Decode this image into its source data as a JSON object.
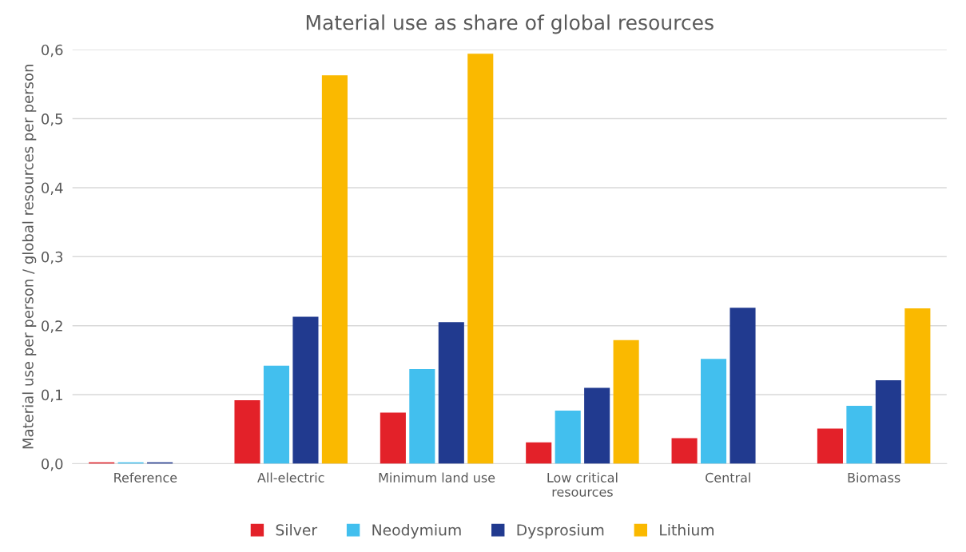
{
  "chart_data": {
    "type": "bar",
    "title": "Material use as share of global resources",
    "ylabel": "Material use per person / global resources per person",
    "categories": [
      "Reference",
      "All-electric",
      "Minimum land use",
      "Low critical\nresources",
      "Central",
      "Biomass"
    ],
    "series": [
      {
        "name": "Silver",
        "color": "#e32129",
        "values": [
          0.002,
          0.092,
          0.074,
          0.031,
          0.037,
          0.051
        ]
      },
      {
        "name": "Neodymium",
        "color": "#42bfee",
        "values": [
          0.002,
          0.142,
          0.137,
          0.077,
          0.152,
          0.084
        ]
      },
      {
        "name": "Dysprosium",
        "color": "#213a8f",
        "values": [
          0.002,
          0.213,
          0.205,
          0.11,
          0.226,
          0.121
        ]
      },
      {
        "name": "Lithium",
        "color": "#fab900",
        "values": [
          null,
          0.563,
          0.594,
          0.179,
          null,
          0.225
        ]
      }
    ],
    "ylim": [
      0,
      0.6
    ],
    "yticks": [
      {
        "value": 0,
        "label": "0,0"
      },
      {
        "value": 0.1,
        "label": "0,1"
      },
      {
        "value": 0.2,
        "label": "0,2"
      },
      {
        "value": 0.3,
        "label": "0,3"
      },
      {
        "value": 0.4,
        "label": "0,4"
      },
      {
        "value": 0.5,
        "label": "0,5"
      },
      {
        "value": 0.6,
        "label": "0,6"
      }
    ],
    "grid": "y",
    "legend": "bottom"
  }
}
